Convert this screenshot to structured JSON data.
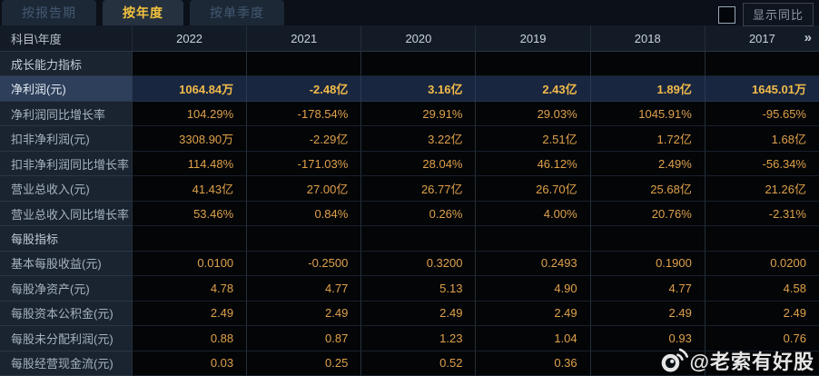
{
  "tabs": [
    {
      "label": "按报告期",
      "active": false
    },
    {
      "label": "按年度",
      "active": true
    },
    {
      "label": "按单季度",
      "active": false
    }
  ],
  "controls": {
    "compare_label": "显示同比",
    "compare_checked": false
  },
  "table": {
    "corner_label": "科目\\年度",
    "years": [
      "2022",
      "2021",
      "2020",
      "2019",
      "2018",
      "2017"
    ],
    "more_icon": "»",
    "rows": [
      {
        "type": "section",
        "label": "成长能力指标",
        "values": [
          "",
          "",
          "",
          "",
          "",
          ""
        ]
      },
      {
        "type": "highlight",
        "label": "净利润(元)",
        "values": [
          "1064.84万",
          "-2.48亿",
          "3.16亿",
          "2.43亿",
          "1.89亿",
          "1645.01万"
        ]
      },
      {
        "type": "data",
        "label": "净利润同比增长率",
        "values": [
          "104.29%",
          "-178.54%",
          "29.91%",
          "29.03%",
          "1045.91%",
          "-95.65%"
        ]
      },
      {
        "type": "data",
        "label": "扣非净利润(元)",
        "values": [
          "3308.90万",
          "-2.29亿",
          "3.22亿",
          "2.51亿",
          "1.72亿",
          "1.68亿"
        ]
      },
      {
        "type": "data",
        "label": "扣非净利润同比增长率",
        "values": [
          "114.48%",
          "-171.03%",
          "28.04%",
          "46.12%",
          "2.49%",
          "-56.34%"
        ]
      },
      {
        "type": "data",
        "label": "营业总收入(元)",
        "values": [
          "41.43亿",
          "27.00亿",
          "26.77亿",
          "26.70亿",
          "25.68亿",
          "21.26亿"
        ]
      },
      {
        "type": "data",
        "label": "营业总收入同比增长率",
        "values": [
          "53.46%",
          "0.84%",
          "0.26%",
          "4.00%",
          "20.76%",
          "-2.31%"
        ]
      },
      {
        "type": "section",
        "label": "每股指标",
        "values": [
          "",
          "",
          "",
          "",
          "",
          ""
        ]
      },
      {
        "type": "data",
        "label": "基本每股收益(元)",
        "values": [
          "0.0100",
          "-0.2500",
          "0.3200",
          "0.2493",
          "0.1900",
          "0.0200"
        ]
      },
      {
        "type": "data",
        "label": "每股净资产(元)",
        "values": [
          "4.78",
          "4.77",
          "5.13",
          "4.90",
          "4.77",
          "4.58"
        ]
      },
      {
        "type": "data",
        "label": "每股资本公积金(元)",
        "values": [
          "2.49",
          "2.49",
          "2.49",
          "2.49",
          "2.49",
          "2.49"
        ]
      },
      {
        "type": "data",
        "label": "每股未分配利润(元)",
        "values": [
          "0.88",
          "0.87",
          "1.23",
          "1.04",
          "0.93",
          "0.76"
        ]
      },
      {
        "type": "data",
        "label": "每股经营现金流(元)",
        "values": [
          "0.03",
          "0.25",
          "0.52",
          "0.36",
          "",
          ""
        ]
      }
    ]
  },
  "watermark": {
    "text": "@老索有好股",
    "icon": "weibo-camera-icon"
  },
  "colors": {
    "accent_gold": "#f3c13e",
    "value_orange": "#e0a14b",
    "highlight_value_gold": "#f2bb4a",
    "highlight_label_bg": "#2d3f5a",
    "highlight_data_bg": "#182640",
    "label_column_bg": "#1a2330",
    "data_cell_bg": "#030507",
    "header_bg": "#131b26",
    "page_bg": "#0a0f16"
  }
}
